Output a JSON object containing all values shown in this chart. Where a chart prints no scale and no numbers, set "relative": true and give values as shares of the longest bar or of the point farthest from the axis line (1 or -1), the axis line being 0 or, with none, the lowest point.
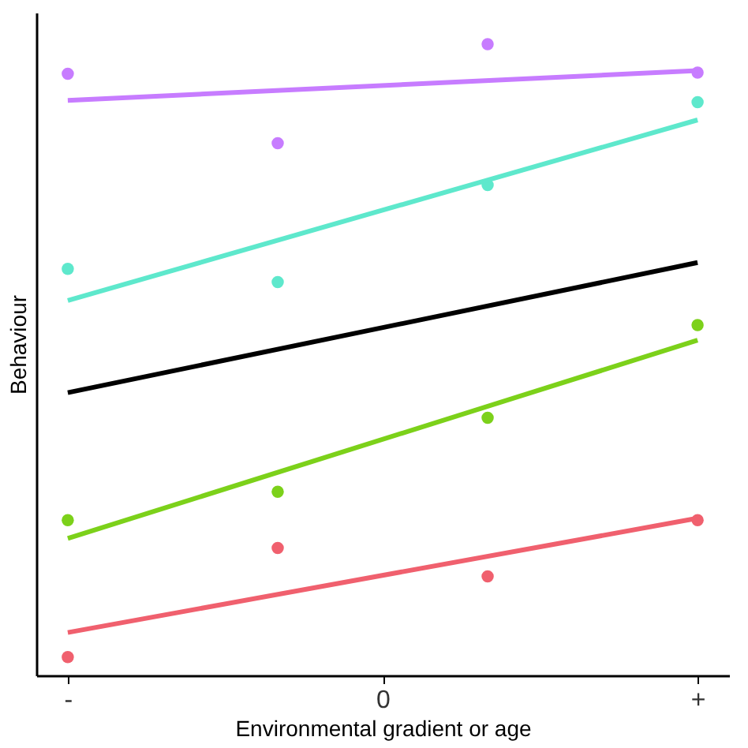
{
  "chart_data": {
    "type": "scatter",
    "xlabel": "Environmental gradient or age",
    "ylabel": "Behaviour",
    "relative": true,
    "tick_labels": "x",
    "grid": false,
    "legend": false,
    "marker": "circle",
    "categories": [
      "-",
      null,
      null,
      "0",
      null,
      null,
      "+"
    ],
    "series": [
      {
        "color": "#c77cff",
        "values": [
          0.953,
          null,
          0.843,
          null,
          1.0,
          null,
          0.955
        ]
      },
      {
        "type": "line",
        "marker": "none",
        "color": "#c77cff",
        "values": [
          0.911,
          null,
          null,
          null,
          null,
          null,
          0.958
        ]
      },
      {
        "color": "#5ee8cc",
        "values": [
          0.644,
          null,
          0.623,
          null,
          0.777,
          null,
          0.908
        ]
      },
      {
        "type": "line",
        "marker": "none",
        "color": "#5ee8cc",
        "values": [
          0.594,
          null,
          null,
          null,
          null,
          null,
          0.88
        ]
      },
      {
        "type": "line",
        "marker": "none",
        "color": "#000000",
        "values": [
          0.448,
          null,
          null,
          null,
          null,
          null,
          0.654
        ]
      },
      {
        "color": "#7cd11a",
        "values": [
          0.246,
          null,
          0.291,
          null,
          0.408,
          null,
          0.555
        ]
      },
      {
        "type": "line",
        "marker": "none",
        "color": "#7cd11a",
        "values": [
          0.217,
          null,
          null,
          null,
          null,
          null,
          0.531
        ]
      },
      {
        "color": "#f0606e",
        "values": [
          0.029,
          null,
          0.202,
          null,
          0.157,
          null,
          0.246
        ]
      },
      {
        "type": "line",
        "marker": "none",
        "color": "#f0606e",
        "values": [
          0.068,
          null,
          null,
          null,
          null,
          null,
          0.249
        ]
      }
    ]
  }
}
